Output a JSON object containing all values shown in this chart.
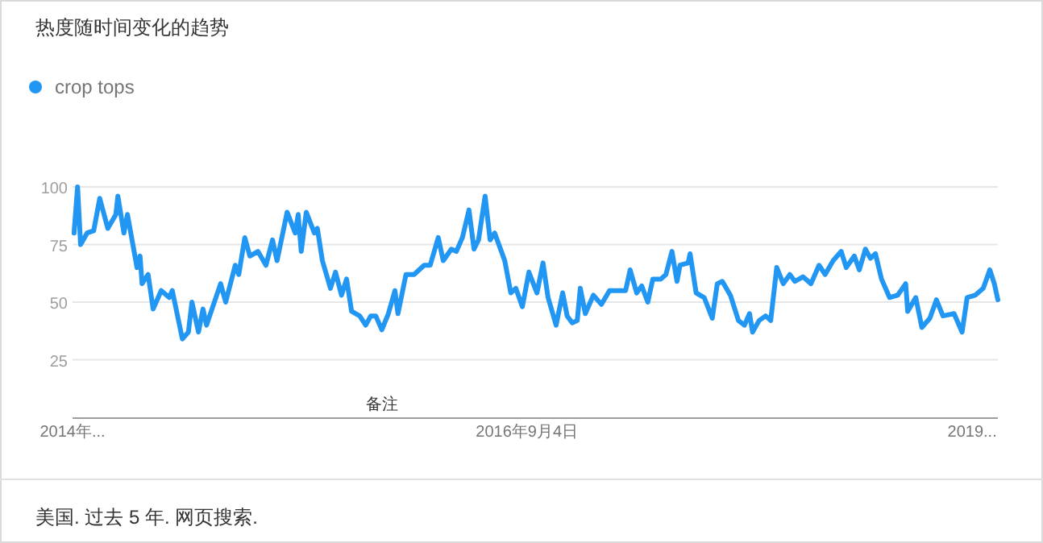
{
  "chart_data": {
    "type": "line",
    "title": "热度随时间变化的趋势",
    "legend": "top left",
    "grid": "y",
    "ylim": [
      0,
      100
    ],
    "yticks": [
      25,
      50,
      75,
      100
    ],
    "xlim": [
      "2014-03-17",
      "2019-03-28"
    ],
    "xticks": [
      {
        "value": "2014-03-17",
        "label": "2014年..."
      },
      {
        "value": "2016-09-04",
        "label": "2016年9月4日"
      },
      {
        "value": "2019-02-05",
        "label": "2019..."
      }
    ],
    "annotations": [
      "备注",
      "美国. 过去 5 年. 网页搜索."
    ],
    "x": [
      "2014-03-20",
      "2014-03-27",
      "2014-04-02",
      "2014-04-15",
      "2014-04-28",
      "2014-05-10",
      "2014-05-26",
      "2014-06-11",
      "2014-06-15",
      "2014-06-27",
      "2014-07-04",
      "2014-07-23",
      "2014-07-29",
      "2014-08-02",
      "2014-08-14",
      "2014-08-24",
      "2014-09-09",
      "2014-09-25",
      "2014-10-01",
      "2014-10-21",
      "2014-11-02",
      "2014-11-09",
      "2014-11-22",
      "2014-12-01",
      "2014-12-08",
      "2015-01-05",
      "2015-01-15",
      "2015-02-03",
      "2015-02-10",
      "2015-02-22",
      "2015-03-04",
      "2015-03-20",
      "2015-04-05",
      "2015-04-18",
      "2015-04-27",
      "2015-05-17",
      "2015-06-02",
      "2015-06-08",
      "2015-06-14",
      "2015-06-24",
      "2015-07-10",
      "2015-07-16",
      "2015-07-26",
      "2015-08-11",
      "2015-08-21",
      "2015-09-02",
      "2015-09-12",
      "2015-09-22",
      "2015-10-08",
      "2015-10-20",
      "2015-10-30",
      "2015-11-09",
      "2015-11-21",
      "2015-12-04",
      "2015-12-17",
      "2015-12-23",
      "2016-01-08",
      "2016-01-24",
      "2016-02-13",
      "2016-02-25",
      "2016-03-12",
      "2016-03-22",
      "2016-04-07",
      "2016-04-17",
      "2016-04-29",
      "2016-05-12",
      "2016-05-22",
      "2016-05-31",
      "2016-06-13",
      "2016-06-23",
      "2016-07-02",
      "2016-07-12",
      "2016-07-22",
      "2016-08-03",
      "2016-08-13",
      "2016-08-26",
      "2016-09-08",
      "2016-09-24",
      "2016-10-06",
      "2016-10-16",
      "2016-11-01",
      "2016-11-14",
      "2016-11-23",
      "2016-12-03",
      "2016-12-13",
      "2016-12-19",
      "2016-12-29",
      "2017-01-14",
      "2017-01-30",
      "2017-02-15",
      "2017-03-03",
      "2017-03-19",
      "2017-03-28",
      "2017-04-10",
      "2017-04-20",
      "2017-05-02",
      "2017-05-12",
      "2017-05-28",
      "2017-06-07",
      "2017-06-19",
      "2017-06-29",
      "2017-07-05",
      "2017-07-21",
      "2017-07-25",
      "2017-08-06",
      "2017-08-22",
      "2017-09-07",
      "2017-09-17",
      "2017-09-27",
      "2017-10-13",
      "2017-10-29",
      "2017-11-10",
      "2017-11-20",
      "2017-11-26",
      "2017-12-09",
      "2017-12-22",
      "2018-01-01",
      "2018-01-13",
      "2018-01-26",
      "2018-02-08",
      "2018-02-18",
      "2018-03-06",
      "2018-03-22",
      "2018-04-07",
      "2018-04-19",
      "2018-05-05",
      "2018-05-21",
      "2018-05-31",
      "2018-06-16",
      "2018-06-26",
      "2018-07-08",
      "2018-07-18",
      "2018-07-28",
      "2018-08-09",
      "2018-08-25",
      "2018-09-10",
      "2018-09-26",
      "2018-09-30",
      "2018-10-16",
      "2018-10-28",
      "2018-11-13",
      "2018-11-26",
      "2018-12-09",
      "2018-12-31",
      "2019-01-16",
      "2019-01-26",
      "2019-02-11",
      "2019-02-27",
      "2019-03-12",
      "2019-03-21",
      "2019-03-28"
    ],
    "series": [
      {
        "name": "crop tops",
        "color": "#2196f3",
        "values": [
          80,
          100,
          75,
          80,
          81,
          95,
          82,
          88,
          96,
          80,
          88,
          65,
          70,
          58,
          62,
          47,
          55,
          52,
          55,
          34,
          37,
          50,
          37,
          47,
          40,
          58,
          50,
          66,
          62,
          78,
          70,
          72,
          66,
          77,
          68,
          89,
          80,
          88,
          72,
          89,
          80,
          82,
          68,
          56,
          63,
          53,
          60,
          46,
          44,
          40,
          44,
          44,
          38,
          45,
          55,
          45,
          62,
          62,
          66,
          66,
          78,
          68,
          73,
          72,
          78,
          90,
          73,
          77,
          96,
          77,
          80,
          74,
          68,
          54,
          56,
          48,
          63,
          54,
          67,
          52,
          40,
          54,
          44,
          41,
          42,
          56,
          45,
          53,
          49,
          55,
          55,
          55,
          64,
          54,
          57,
          50,
          60,
          60,
          62,
          72,
          59,
          66,
          67,
          71,
          54,
          52,
          43,
          58,
          59,
          53,
          42,
          40,
          45,
          37,
          42,
          44,
          42,
          65,
          58,
          62,
          59,
          61,
          58,
          66,
          62,
          68,
          72,
          65,
          70,
          64,
          73,
          69,
          71,
          60,
          52,
          53,
          58,
          46,
          52,
          39,
          43,
          51,
          44,
          45,
          37,
          52,
          53,
          56,
          64,
          58,
          51
        ]
      }
    ]
  }
}
